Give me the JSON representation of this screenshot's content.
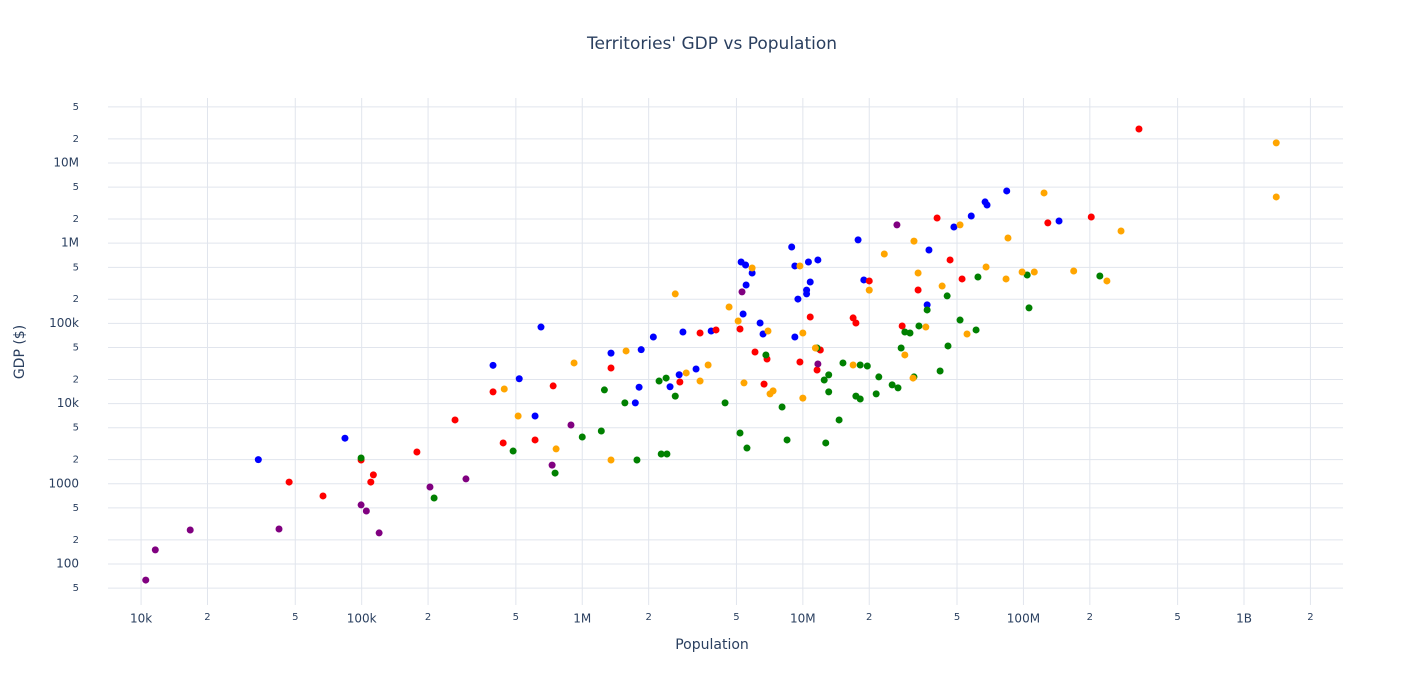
{
  "chart_data": {
    "type": "scatter",
    "title": "Territories' GDP vs Population",
    "x_label": "Population",
    "y_label": "GDP ($)",
    "log_x": true,
    "log_y": true,
    "grid": true,
    "xlim": [
      7080,
      2810000000
    ],
    "ylim": [
      30.8,
      64600000
    ],
    "xticks": [
      {
        "value": 10000,
        "label": "10k"
      },
      {
        "value": 20000,
        "label": "2"
      },
      {
        "value": 50000,
        "label": "5"
      },
      {
        "value": 100000,
        "label": "100k"
      },
      {
        "value": 200000,
        "label": "2"
      },
      {
        "value": 500000,
        "label": "5"
      },
      {
        "value": 1000000,
        "label": "1M"
      },
      {
        "value": 2000000,
        "label": "2"
      },
      {
        "value": 5000000,
        "label": "5"
      },
      {
        "value": 10000000,
        "label": "10M"
      },
      {
        "value": 20000000,
        "label": "2"
      },
      {
        "value": 50000000,
        "label": "5"
      },
      {
        "value": 100000000,
        "label": "100M"
      },
      {
        "value": 200000000,
        "label": "2"
      },
      {
        "value": 500000000,
        "label": "5"
      },
      {
        "value": 1000000000,
        "label": "1B"
      },
      {
        "value": 2000000000,
        "label": "2"
      }
    ],
    "yticks": [
      {
        "value": 50,
        "label": "5"
      },
      100,
      {
        "value": 200,
        "label": "2"
      },
      {
        "value": 500,
        "label": "5"
      },
      1000,
      {
        "value": 2000,
        "label": "2"
      },
      {
        "value": 5000,
        "label": "5"
      },
      {
        "value": 10000,
        "label": "10k"
      },
      {
        "value": 20000,
        "label": "2"
      },
      {
        "value": 50000,
        "label": "5"
      },
      {
        "value": 100000,
        "label": "100k"
      },
      {
        "value": 200000,
        "label": "2"
      },
      {
        "value": 500000,
        "label": "5"
      },
      {
        "value": 1000000,
        "label": "1M"
      },
      {
        "value": 2000000,
        "label": "2"
      },
      {
        "value": 5000000,
        "label": "5"
      },
      {
        "value": 10000000,
        "label": "10M"
      },
      {
        "value": 20000000,
        "label": "2"
      },
      {
        "value": 50000000,
        "label": "5"
      }
    ],
    "series": [
      {
        "color": "blue",
        "x": [
          34000,
          84000,
          394000,
          518000,
          650000,
          611000,
          1350000,
          1740000,
          1810000,
          1850000,
          2100000,
          2500000,
          2750000,
          2860000,
          3280000,
          3840000,
          5250000,
          5500000,
          5360000,
          5530000,
          5890000,
          6400000,
          6600000,
          8900000,
          9200000,
          9200000,
          9500000,
          10400000,
          10600000,
          10400000,
          10800000,
          11700000,
          17800000,
          18900000,
          36600000,
          37300000,
          48400000,
          58000000,
          67000000,
          68400000,
          84000000,
          145000000
        ],
        "values": [
          2000,
          3700,
          30000,
          20400,
          90000,
          7000,
          42600,
          10200,
          16000,
          47000,
          67600,
          16200,
          22900,
          78000,
          27000,
          80400,
          583000,
          534000,
          131000,
          301000,
          425000,
          101000,
          73800,
          897000,
          520000,
          67600,
          201000,
          260000,
          583000,
          233000,
          328000,
          618000,
          1100000,
          348000,
          170000,
          822000,
          1590000,
          2180000,
          3270000,
          2990000,
          4480000,
          1890000
        ]
      },
      {
        "color": "red",
        "x": [
          46900,
          66800,
          99400,
          110000,
          113000,
          178000,
          265000,
          394000,
          438000,
          611000,
          738000,
          1350000,
          2770000,
          3420000,
          4040000,
          5190000,
          6070000,
          6670000,
          6880000,
          9700000,
          10800000,
          11600000,
          12000000,
          16900000,
          17400000,
          20000000,
          28200000,
          33300000,
          40600000,
          46500000,
          52700000,
          129000000,
          203000000,
          334000000
        ],
        "values": [
          1050,
          705,
          1980,
          1050,
          1290,
          2490,
          6250,
          14000,
          3230,
          3520,
          16600,
          27800,
          18600,
          75900,
          82800,
          85100,
          44000,
          17500,
          36000,
          33000,
          120000,
          26200,
          46600,
          117000,
          101000,
          338000,
          92900,
          261000,
          2060000,
          618000,
          358000,
          1790000,
          2120000,
          26500000
        ]
      },
      {
        "color": "green",
        "x": [
          99400,
          213000,
          486000,
          753000,
          1000000,
          1220000,
          1260000,
          1560000,
          1770000,
          2230000,
          2280000,
          2420000,
          2400000,
          2640000,
          4440000,
          5190000,
          5580000,
          6800000,
          8050000,
          8480000,
          11600000,
          12500000,
          13100000,
          13100000,
          12700000,
          14600000,
          15200000,
          17400000,
          18200000,
          18200000,
          19600000,
          21500000,
          22100000,
          25400000,
          27000000,
          27900000,
          29000000,
          30600000,
          31900000,
          33600000,
          36600000,
          41900000,
          45100000,
          45500000,
          51600000,
          61000000,
          62200000,
          104000000,
          106000000,
          222000000
        ],
        "values": [
          2100,
          665,
          2560,
          1360,
          3830,
          4550,
          14800,
          10200,
          1980,
          19100,
          2350,
          2350,
          20800,
          12400,
          10200,
          4300,
          2790,
          40400,
          9070,
          3520,
          49300,
          19700,
          22800,
          14000,
          3230,
          6250,
          32100,
          12400,
          11400,
          30300,
          29400,
          13200,
          21500,
          17100,
          15700,
          49300,
          78100,
          75900,
          21500,
          92900,
          147000,
          25500,
          220000,
          52300,
          110000,
          82800,
          379000,
          401000,
          156000,
          390000
        ]
      },
      {
        "color": "orange",
        "x": [
          443000,
          512000,
          761000,
          918000,
          1350000,
          1580000,
          2640000,
          2960000,
          3420000,
          3720000,
          4630000,
          5090000,
          5410000,
          5890000,
          6950000,
          7100000,
          7330000,
          9700000,
          10000000,
          10000000,
          11400000,
          16900000,
          20000000,
          23400000,
          29000000,
          31900000,
          31600000,
          33300000,
          36100000,
          42800000,
          51600000,
          55500000,
          67700000,
          83400000,
          85100000,
          98600000,
          112000000,
          124000000,
          169000000,
          239000000,
          277000000,
          1400000000,
          1400000000
        ],
        "values": [
          15200,
          7000,
          2720,
          32100,
          1980,
          45300,
          233000,
          24100,
          19100,
          30300,
          160000,
          107000,
          18100,
          491000,
          80400,
          13200,
          14400,
          520000,
          75900,
          11700,
          49300,
          30300,
          260000,
          733000,
          40400,
          1060000,
          20800,
          425000,
          90000,
          292000,
          1690000,
          73800,
          505000,
          358000,
          1160000,
          437000,
          437000,
          4230000,
          450000,
          338000,
          1420000,
          17800000,
          3770000
        ]
      },
      {
        "color": "purple",
        "x": [
          10500,
          11600,
          16700,
          42200,
          99400,
          105000,
          120000,
          204000,
          297000,
          730000,
          889000,
          5300000,
          11700000,
          26700000
        ],
        "values": [
          63,
          150,
          265,
          273,
          545,
          458,
          244,
          912,
          1150,
          1710,
          5410,
          247000,
          31200,
          1690000
        ]
      }
    ]
  }
}
